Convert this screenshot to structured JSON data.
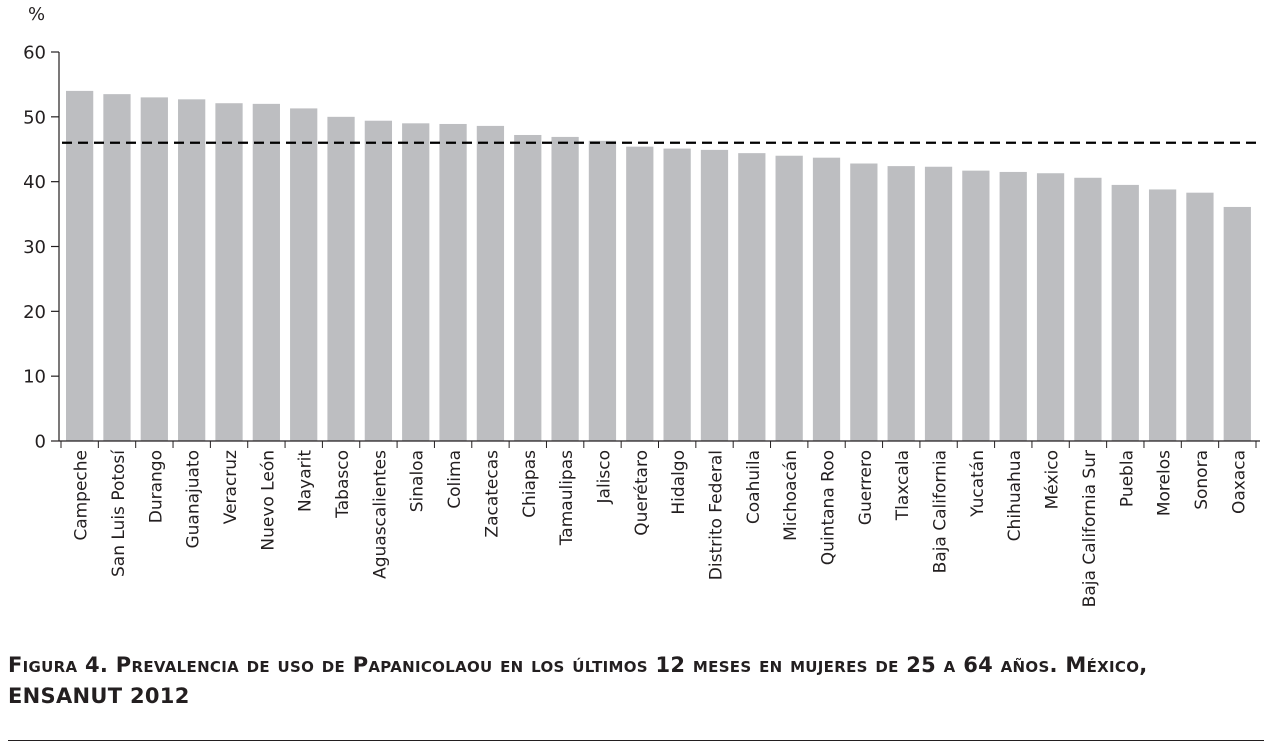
{
  "chart_data": {
    "type": "bar",
    "ylabel": "%",
    "ylim": [
      0,
      60
    ],
    "yticks": [
      0,
      10,
      20,
      30,
      40,
      50,
      60
    ],
    "categories": [
      "Campeche",
      "San Luis Potosí",
      "Durango",
      "Guanajuato",
      "Veracruz",
      "Nuevo León",
      "Nayarit",
      "Tabasco",
      "Aguascalientes",
      "Sinaloa",
      "Colima",
      "Zacatecas",
      "Chiapas",
      "Tamaulipas",
      "Jalisco",
      "Querétaro",
      "Hidalgo",
      "Distrito Federal",
      "Coahuila",
      "Michoacán",
      "Quintana Roo",
      "Guerrero",
      "Tlaxcala",
      "Baja California",
      "Yucatán",
      "Chihuahua",
      "México",
      "Baja California Sur",
      "Puebla",
      "Morelos",
      "Sonora",
      "Oaxaca"
    ],
    "values": [
      54.0,
      53.5,
      53.0,
      52.7,
      52.1,
      52.0,
      51.3,
      50.0,
      49.4,
      49.0,
      48.9,
      48.6,
      47.2,
      46.9,
      46.3,
      45.4,
      45.1,
      44.9,
      44.4,
      44.0,
      43.7,
      42.8,
      42.4,
      42.3,
      41.7,
      41.5,
      41.3,
      40.6,
      39.5,
      38.8,
      38.3,
      36.1
    ],
    "reference_line": 46.0,
    "bar_color": "#bdbec1",
    "line_color": "#000000"
  },
  "caption": {
    "line1": "Figura 4. Prevalencia de uso de Papanicolaou en los últimos 12 meses en mujeres de 25 a 64 años. México,",
    "line2": "ENSANUT 2012"
  }
}
